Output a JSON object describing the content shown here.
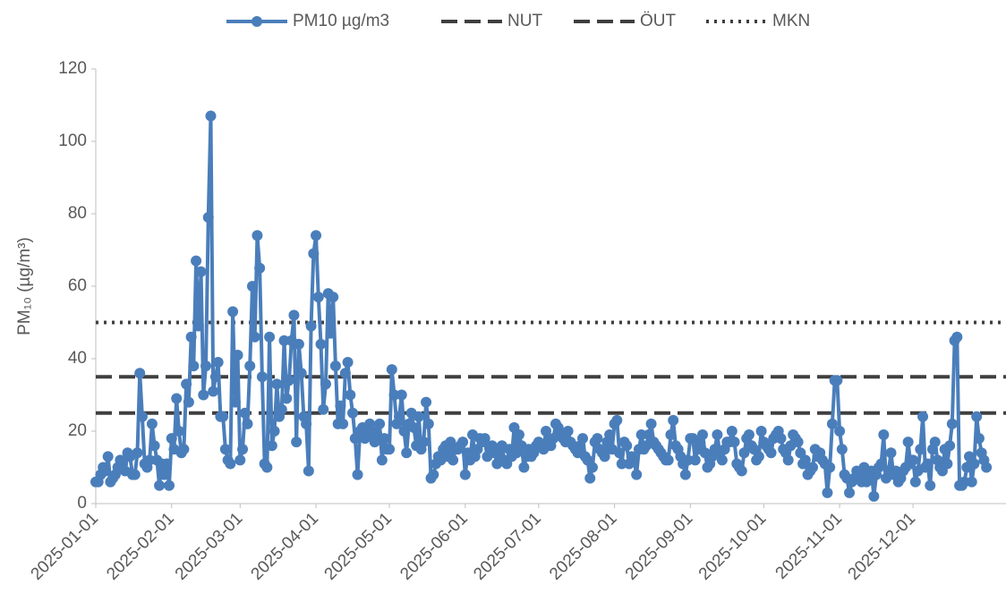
{
  "chart_data": {
    "type": "line",
    "y_label": "PM₁₀ (µg/m³)",
    "x": [
      "2025-01-01",
      "2025-01-02",
      "2025-01-03",
      "2025-01-04",
      "2025-01-05",
      "2025-01-06",
      "2025-01-07",
      "2025-01-08",
      "2025-01-09",
      "2025-01-10",
      "2025-01-11",
      "2025-01-12",
      "2025-01-13",
      "2025-01-14",
      "2025-01-15",
      "2025-01-16",
      "2025-01-17",
      "2025-01-18",
      "2025-01-19",
      "2025-01-20",
      "2025-01-21",
      "2025-01-22",
      "2025-01-23",
      "2025-01-24",
      "2025-01-25",
      "2025-01-26",
      "2025-01-27",
      "2025-01-28",
      "2025-01-29",
      "2025-01-30",
      "2025-01-31",
      "2025-02-01",
      "2025-02-02",
      "2025-02-03",
      "2025-02-04",
      "2025-02-05",
      "2025-02-06",
      "2025-02-07",
      "2025-02-08",
      "2025-02-09",
      "2025-02-10",
      "2025-02-11",
      "2025-02-12",
      "2025-02-13",
      "2025-02-14",
      "2025-02-15",
      "2025-02-16",
      "2025-02-17",
      "2025-02-18",
      "2025-02-19",
      "2025-02-20",
      "2025-02-21",
      "2025-02-22",
      "2025-02-23",
      "2025-02-24",
      "2025-02-25",
      "2025-02-26",
      "2025-02-27",
      "2025-02-28",
      "2025-03-01",
      "2025-03-02",
      "2025-03-03",
      "2025-03-04",
      "2025-03-05",
      "2025-03-06",
      "2025-03-07",
      "2025-03-08",
      "2025-03-09",
      "2025-03-10",
      "2025-03-11",
      "2025-03-12",
      "2025-03-13",
      "2025-03-14",
      "2025-03-15",
      "2025-03-16",
      "2025-03-17",
      "2025-03-18",
      "2025-03-19",
      "2025-03-20",
      "2025-03-21",
      "2025-03-22",
      "2025-03-23",
      "2025-03-24",
      "2025-03-25",
      "2025-03-26",
      "2025-03-27",
      "2025-03-28",
      "2025-03-29",
      "2025-03-30",
      "2025-03-31",
      "2025-04-01",
      "2025-04-02",
      "2025-04-03",
      "2025-04-04",
      "2025-04-05",
      "2025-04-06",
      "2025-04-07",
      "2025-04-08",
      "2025-04-09",
      "2025-04-10",
      "2025-04-11",
      "2025-04-12",
      "2025-04-13",
      "2025-04-14",
      "2025-04-15",
      "2025-04-16",
      "2025-04-17",
      "2025-04-18",
      "2025-04-19",
      "2025-04-20",
      "2025-04-21",
      "2025-04-22",
      "2025-04-23",
      "2025-04-24",
      "2025-04-25",
      "2025-04-26",
      "2025-04-27",
      "2025-04-28",
      "2025-04-29",
      "2025-04-30",
      "2025-05-01",
      "2025-05-02",
      "2025-05-03",
      "2025-05-04",
      "2025-05-05",
      "2025-05-06",
      "2025-05-07",
      "2025-05-08",
      "2025-05-09",
      "2025-05-10",
      "2025-05-11",
      "2025-05-12",
      "2025-05-13",
      "2025-05-14",
      "2025-05-15",
      "2025-05-16",
      "2025-05-17",
      "2025-05-18",
      "2025-05-19",
      "2025-05-20",
      "2025-05-21",
      "2025-05-22",
      "2025-05-23",
      "2025-05-24",
      "2025-05-25",
      "2025-05-26",
      "2025-05-27",
      "2025-05-28",
      "2025-05-29",
      "2025-05-30",
      "2025-05-31",
      "2025-06-01",
      "2025-06-02",
      "2025-06-03",
      "2025-06-04",
      "2025-06-05",
      "2025-06-06",
      "2025-06-07",
      "2025-06-08",
      "2025-06-09",
      "2025-06-10",
      "2025-06-11",
      "2025-06-12",
      "2025-06-13",
      "2025-06-14",
      "2025-06-15",
      "2025-06-16",
      "2025-06-17",
      "2025-06-18",
      "2025-06-19",
      "2025-06-20",
      "2025-06-21",
      "2025-06-22",
      "2025-06-23",
      "2025-06-24",
      "2025-06-25",
      "2025-06-26",
      "2025-06-27",
      "2025-06-28",
      "2025-06-29",
      "2025-06-30",
      "2025-07-01",
      "2025-07-02",
      "2025-07-03",
      "2025-07-04",
      "2025-07-05",
      "2025-07-06",
      "2025-07-07",
      "2025-07-08",
      "2025-07-09",
      "2025-07-10",
      "2025-07-11",
      "2025-07-12",
      "2025-07-13",
      "2025-07-14",
      "2025-07-15",
      "2025-07-16",
      "2025-07-17",
      "2025-07-18",
      "2025-07-19",
      "2025-07-20",
      "2025-07-21",
      "2025-07-22",
      "2025-07-23",
      "2025-07-24",
      "2025-07-25",
      "2025-07-26",
      "2025-07-27",
      "2025-07-28",
      "2025-07-29",
      "2025-07-30",
      "2025-07-31",
      "2025-08-01",
      "2025-08-02",
      "2025-08-03",
      "2025-08-04",
      "2025-08-05",
      "2025-08-06",
      "2025-08-07",
      "2025-08-08",
      "2025-08-09",
      "2025-08-10",
      "2025-08-11",
      "2025-08-12",
      "2025-08-13",
      "2025-08-14",
      "2025-08-15",
      "2025-08-16",
      "2025-08-17",
      "2025-08-18",
      "2025-08-19",
      "2025-08-20",
      "2025-08-21",
      "2025-08-22",
      "2025-08-23",
      "2025-08-24",
      "2025-08-25",
      "2025-08-26",
      "2025-08-27",
      "2025-08-28",
      "2025-08-29",
      "2025-08-30",
      "2025-08-31",
      "2025-09-01",
      "2025-09-02",
      "2025-09-03",
      "2025-09-04",
      "2025-09-05",
      "2025-09-06",
      "2025-09-07",
      "2025-09-08",
      "2025-09-09",
      "2025-09-10",
      "2025-09-11",
      "2025-09-12",
      "2025-09-13",
      "2025-09-14",
      "2025-09-15",
      "2025-09-16",
      "2025-09-17",
      "2025-09-18",
      "2025-09-19",
      "2025-09-20",
      "2025-09-21",
      "2025-09-22",
      "2025-09-23",
      "2025-09-24",
      "2025-09-25",
      "2025-09-26",
      "2025-09-27",
      "2025-09-28",
      "2025-09-29",
      "2025-09-30",
      "2025-10-01",
      "2025-10-02",
      "2025-10-03",
      "2025-10-04",
      "2025-10-05",
      "2025-10-06",
      "2025-10-07",
      "2025-10-08",
      "2025-10-09",
      "2025-10-10",
      "2025-10-11",
      "2025-10-12",
      "2025-10-13",
      "2025-10-14",
      "2025-10-15",
      "2025-10-16",
      "2025-10-17",
      "2025-10-18",
      "2025-10-19",
      "2025-10-20",
      "2025-10-21",
      "2025-10-22",
      "2025-10-23",
      "2025-10-24",
      "2025-10-25",
      "2025-10-26",
      "2025-10-27",
      "2025-10-28",
      "2025-10-29",
      "2025-10-30",
      "2025-10-31",
      "2025-11-01",
      "2025-11-02",
      "2025-11-03",
      "2025-11-04",
      "2025-11-05",
      "2025-11-06",
      "2025-11-07",
      "2025-11-08",
      "2025-11-09",
      "2025-11-10",
      "2025-11-11",
      "2025-11-12",
      "2025-11-13",
      "2025-11-14",
      "2025-11-15",
      "2025-11-16",
      "2025-11-17",
      "2025-11-18",
      "2025-11-19",
      "2025-11-20",
      "2025-11-21",
      "2025-11-22",
      "2025-11-23",
      "2025-11-24",
      "2025-11-25",
      "2025-11-26",
      "2025-11-27",
      "2025-11-28",
      "2025-11-29",
      "2025-11-30",
      "2025-12-01",
      "2025-12-02",
      "2025-12-03",
      "2025-12-04",
      "2025-12-05",
      "2025-12-06",
      "2025-12-07",
      "2025-12-08",
      "2025-12-09",
      "2025-12-10",
      "2025-12-11",
      "2025-12-12",
      "2025-12-13",
      "2025-12-14",
      "2025-12-15",
      "2025-12-16",
      "2025-12-17",
      "2025-12-18",
      "2025-12-19",
      "2025-12-20",
      "2025-12-21",
      "2025-12-22",
      "2025-12-23",
      "2025-12-24",
      "2025-12-25",
      "2025-12-26",
      "2025-12-27",
      "2025-12-28",
      "2025-12-29",
      "2025-12-30",
      "2025-12-31"
    ],
    "series": [
      {
        "name": "PM10 µg/m3",
        "color": "#4a7ebb",
        "values": [
          6,
          6,
          8,
          10,
          9,
          13,
          6,
          7,
          8,
          10,
          12,
          11,
          9,
          14,
          13,
          8,
          8,
          14,
          36,
          24,
          11,
          10,
          12,
          22,
          16,
          12,
          5,
          11,
          8,
          11,
          5,
          18,
          15,
          29,
          20,
          14,
          15,
          33,
          28,
          46,
          38,
          67,
          49,
          64,
          30,
          38,
          79,
          107,
          31,
          35,
          39,
          24,
          24,
          15,
          12,
          11,
          53,
          28,
          41,
          12,
          15,
          25,
          22,
          38,
          60,
          46,
          74,
          65,
          35,
          11,
          10,
          46,
          16,
          20,
          33,
          24,
          26,
          45,
          29,
          34,
          45,
          52,
          17,
          44,
          36,
          24,
          22,
          9,
          49,
          69,
          74,
          57,
          44,
          26,
          33,
          58,
          47,
          57,
          38,
          22,
          27,
          22,
          36,
          39,
          30,
          25,
          18,
          8,
          20,
          21,
          18,
          19,
          22,
          20,
          17,
          19,
          22,
          12,
          18,
          15,
          15,
          37,
          30,
          22,
          24,
          30,
          20,
          14,
          22,
          25,
          21,
          16,
          24,
          15,
          17,
          28,
          22,
          7,
          8,
          11,
          13,
          12,
          15,
          16,
          13,
          17,
          12,
          15,
          15,
          16,
          17,
          8,
          14,
          12,
          19,
          13,
          15,
          18,
          17,
          18,
          13,
          15,
          16,
          14,
          11,
          13,
          16,
          12,
          11,
          15,
          13,
          21,
          14,
          19,
          16,
          10,
          13,
          15,
          13,
          14,
          16,
          17,
          16,
          15,
          20,
          17,
          16,
          18,
          22,
          21,
          19,
          18,
          17,
          20,
          17,
          16,
          15,
          14,
          16,
          18,
          13,
          12,
          7,
          10,
          17,
          18,
          15,
          14,
          13,
          17,
          19,
          15,
          22,
          23,
          14,
          11,
          17,
          16,
          11,
          13,
          12,
          8,
          15,
          19,
          15,
          16,
          19,
          22,
          17,
          16,
          15,
          14,
          13,
          12,
          12,
          19,
          23,
          16,
          15,
          13,
          11,
          8,
          12,
          18,
          18,
          12,
          15,
          17,
          19,
          14,
          10,
          11,
          13,
          15,
          19,
          14,
          12,
          15,
          17,
          17,
          20,
          17,
          11,
          10,
          9,
          14,
          18,
          19,
          16,
          15,
          12,
          13,
          20,
          17,
          16,
          15,
          14,
          18,
          19,
          20,
          18,
          15,
          14,
          12,
          16,
          19,
          18,
          17,
          14,
          11,
          12,
          8,
          9,
          10,
          15,
          13,
          14,
          12,
          11,
          3,
          10,
          22,
          34,
          34,
          20,
          15,
          8,
          7,
          3,
          6,
          7,
          9,
          8,
          6,
          10,
          6,
          7,
          9,
          2,
          8,
          10,
          11,
          19,
          7,
          9,
          14,
          8,
          9,
          6,
          7,
          9,
          10,
          17,
          11,
          12,
          6,
          9,
          15,
          24,
          10,
          11,
          5,
          15,
          17,
          12,
          10,
          9,
          15,
          11,
          16,
          22,
          45,
          46,
          5,
          5,
          6,
          10,
          13,
          6,
          11,
          24,
          18,
          14,
          12,
          10
        ]
      }
    ],
    "reference_lines": [
      {
        "name": "NUT",
        "value": 25,
        "style": "dashed",
        "color": "#3f3f3f"
      },
      {
        "name": "ÖUT",
        "value": 35,
        "style": "dashed",
        "color": "#3f3f3f"
      },
      {
        "name": "MKN",
        "value": 50,
        "style": "dotted",
        "color": "#3f3f3f"
      }
    ],
    "xlim": [
      "2025-01-01",
      "2026-01-08"
    ],
    "xticks": [
      "2025-01-01",
      "2025-02-01",
      "2025-03-01",
      "2025-04-01",
      "2025-05-01",
      "2025-06-01",
      "2025-07-01",
      "2025-08-01",
      "2025-09-01",
      "2025-10-01",
      "2025-11-01",
      "2025-12-01"
    ],
    "ylim": [
      0,
      120
    ],
    "yticks": [
      0,
      20,
      40,
      60,
      80,
      100,
      120
    ],
    "legend": "top"
  }
}
